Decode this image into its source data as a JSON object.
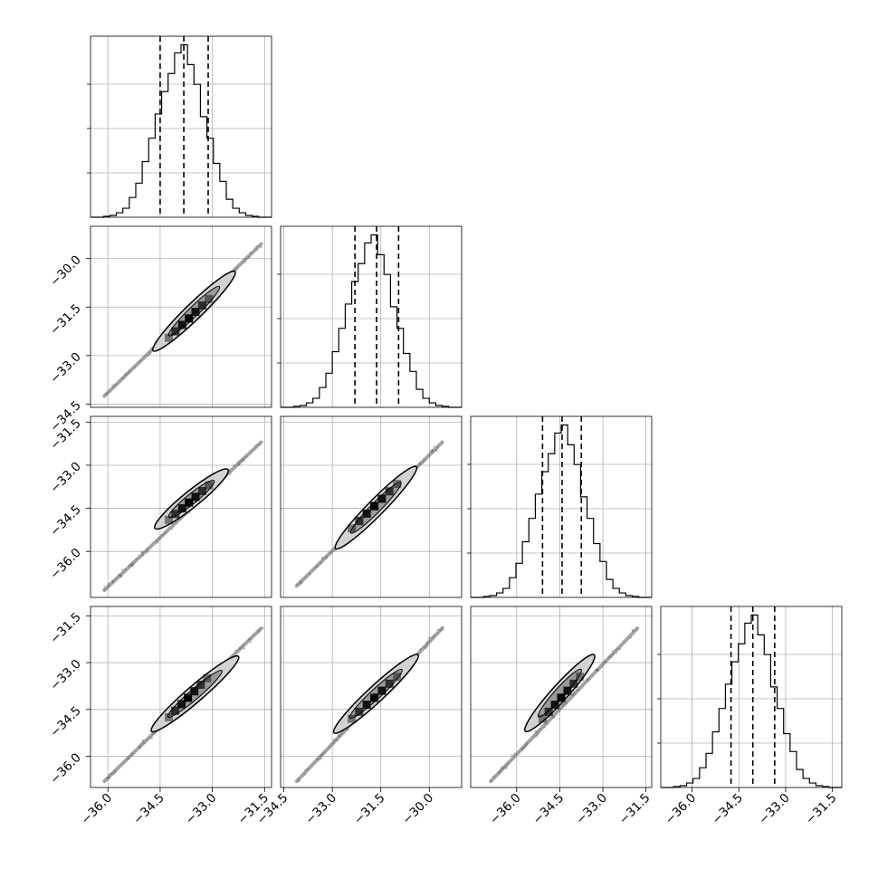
{
  "chart_data": {
    "type": "corner",
    "n_params": 4,
    "grid": true,
    "colors": {
      "line": "#000000",
      "grid": "#b0b0b0",
      "background": "#ffffff"
    },
    "params": [
      {
        "lim": [
          -36.5,
          -31.3
        ],
        "ticks": [
          -36.0,
          -34.5,
          -33.0,
          -31.5
        ],
        "tick_labels": [
          "−36.0",
          "−34.5",
          "−33.0",
          "−31.5"
        ],
        "quantiles": [
          -34.5,
          -33.82,
          -33.12
        ]
      },
      {
        "lim": [
          -34.6,
          -29.0
        ],
        "ticks": [
          -34.5,
          -33.0,
          -31.5,
          -30.0
        ],
        "tick_labels": [
          "−34.5",
          "−33.0",
          "−31.5",
          "−30.0"
        ],
        "quantiles": [
          -32.3,
          -31.63,
          -30.95
        ]
      },
      {
        "lim": [
          -37.6,
          -31.3
        ],
        "ticks": [
          -36.0,
          -34.5,
          -33.0,
          -31.5
        ],
        "tick_labels": [
          "−36.0",
          "−34.5",
          "−33.0",
          "−31.5"
        ],
        "quantiles": [
          -35.1,
          -34.42,
          -33.75
        ]
      },
      {
        "lim": [
          -37.0,
          -31.2
        ],
        "ticks": [
          -36.0,
          -34.5,
          -33.0,
          -31.5
        ],
        "tick_labels": [
          "−36.0",
          "−34.5",
          "−33.0",
          "−31.5"
        ],
        "quantiles": [
          -34.75,
          -34.05,
          -33.35
        ]
      }
    ],
    "histograms": [
      {
        "counts": [
          0,
          0,
          1,
          2,
          5,
          10,
          22,
          38,
          62,
          88,
          115,
          140,
          160,
          183,
          192,
          170,
          148,
          112,
          88,
          60,
          40,
          20,
          10,
          5,
          2,
          1,
          0,
          0
        ]
      },
      {
        "counts": [
          0,
          0,
          1,
          2,
          5,
          10,
          22,
          38,
          62,
          88,
          115,
          140,
          160,
          183,
          192,
          170,
          148,
          112,
          88,
          60,
          40,
          20,
          10,
          5,
          2,
          1,
          0,
          0
        ]
      },
      {
        "counts": [
          0,
          0,
          1,
          2,
          5,
          10,
          22,
          38,
          62,
          88,
          115,
          140,
          160,
          183,
          192,
          170,
          148,
          112,
          88,
          60,
          40,
          20,
          10,
          5,
          2,
          1,
          0,
          0
        ]
      },
      {
        "counts": [
          0,
          0,
          1,
          2,
          5,
          10,
          22,
          38,
          62,
          88,
          115,
          140,
          160,
          183,
          192,
          170,
          148,
          112,
          88,
          60,
          40,
          20,
          10,
          5,
          2,
          1,
          0,
          0
        ]
      }
    ],
    "pair_stats": [
      {
        "row": 1,
        "col": 0,
        "tail": [
          [
            -36.1,
            -34.25
          ],
          [
            -31.6,
            -29.55
          ]
        ],
        "contour": [
          [
            -34.7,
            -32.85
          ],
          [
            -32.35,
            -30.4
          ]
        ],
        "core": [
          [
            -34.25,
            -32.45
          ],
          [
            -33.1,
            -31.25
          ]
        ]
      },
      {
        "row": 2,
        "col": 0,
        "tail": [
          [
            -36.1,
            -37.35
          ],
          [
            -31.6,
            -32.2
          ]
        ],
        "contour": [
          [
            -34.65,
            -35.2
          ],
          [
            -32.55,
            -33.15
          ]
        ],
        "core": [
          [
            -34.25,
            -34.9
          ],
          [
            -33.1,
            -33.7
          ]
        ]
      },
      {
        "row": 2,
        "col": 1,
        "tail": [
          [
            -34.1,
            -37.2
          ],
          [
            -29.6,
            -32.2
          ]
        ],
        "contour": [
          [
            -32.9,
            -35.9
          ],
          [
            -30.4,
            -33.05
          ]
        ],
        "core": [
          [
            -32.4,
            -35.2
          ],
          [
            -31.0,
            -33.65
          ]
        ]
      },
      {
        "row": 3,
        "col": 0,
        "tail": [
          [
            -36.1,
            -36.8
          ],
          [
            -31.6,
            -31.9
          ]
        ],
        "contour": [
          [
            -34.75,
            -35.2
          ],
          [
            -32.25,
            -32.8
          ]
        ],
        "core": [
          [
            -34.25,
            -34.75
          ],
          [
            -33.15,
            -33.5
          ]
        ]
      },
      {
        "row": 3,
        "col": 1,
        "tail": [
          [
            -34.1,
            -36.8
          ],
          [
            -29.6,
            -31.9
          ]
        ],
        "contour": [
          [
            -32.95,
            -35.25
          ],
          [
            -30.35,
            -32.75
          ]
        ],
        "core": [
          [
            -32.4,
            -34.8
          ],
          [
            -31.0,
            -33.45
          ]
        ]
      },
      {
        "row": 3,
        "col": 2,
        "tail": [
          [
            -36.9,
            -36.8
          ],
          [
            -31.8,
            -31.9
          ]
        ],
        "contour": [
          [
            -35.7,
            -35.2
          ],
          [
            -33.3,
            -32.75
          ]
        ],
        "core": [
          [
            -35.1,
            -34.8
          ],
          [
            -33.8,
            -33.45
          ]
        ]
      }
    ]
  }
}
